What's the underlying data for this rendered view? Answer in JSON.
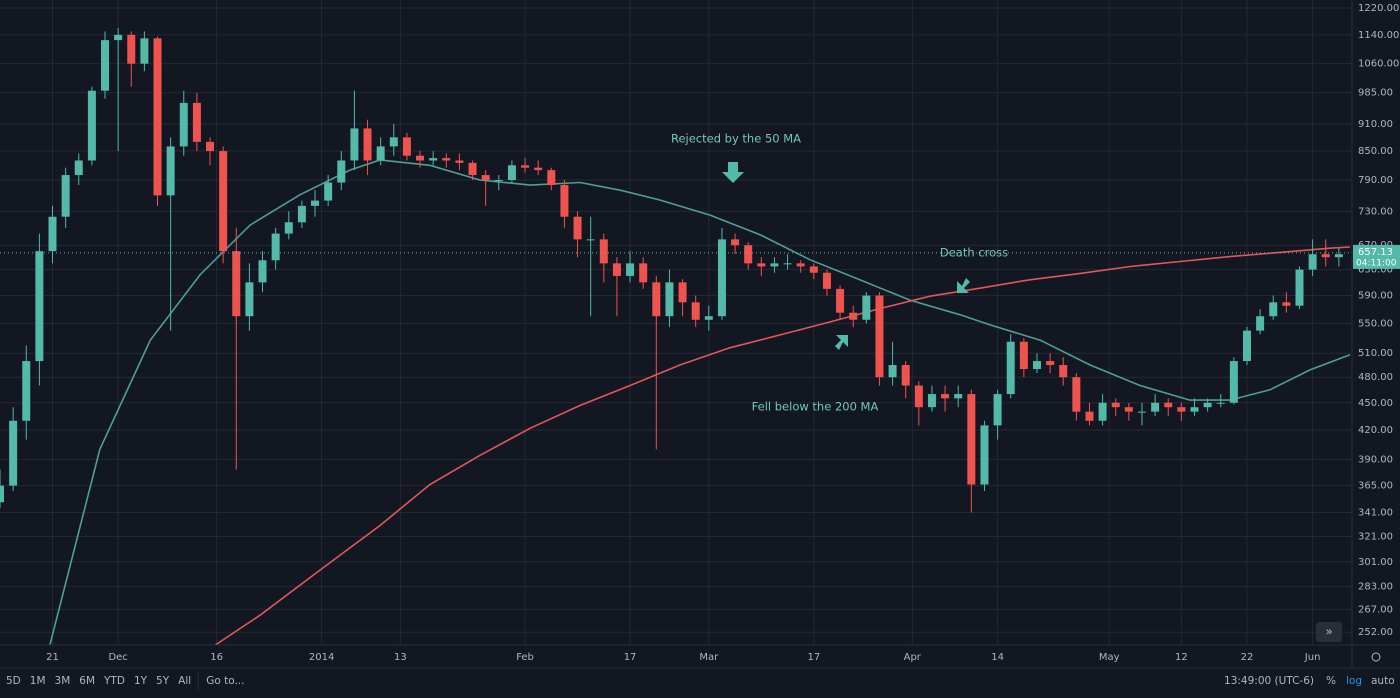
{
  "chart_data": {
    "type": "candlestick",
    "log_scale": true,
    "grid": true,
    "up_color": "#53b9a8",
    "down_color": "#ef5350",
    "xlim": [
      0,
      206
    ],
    "ylim": [
      244,
      1245
    ],
    "xticks": [
      {
        "value": 8,
        "label": "21"
      },
      {
        "value": 18,
        "label": "Dec"
      },
      {
        "value": 33,
        "label": "16"
      },
      {
        "value": 49,
        "label": "2014"
      },
      {
        "value": 61,
        "label": "13"
      },
      {
        "value": 80,
        "label": "Feb"
      },
      {
        "value": 96,
        "label": "17"
      },
      {
        "value": 108,
        "label": "Mar"
      },
      {
        "value": 124,
        "label": "17"
      },
      {
        "value": 139,
        "label": "Apr"
      },
      {
        "value": 152,
        "label": "14"
      },
      {
        "value": 169,
        "label": "May"
      },
      {
        "value": 180,
        "label": "12"
      },
      {
        "value": 190,
        "label": "22"
      },
      {
        "value": 200,
        "label": "Jun"
      }
    ],
    "yticks": [
      {
        "value": 1220,
        "label": "1220.00"
      },
      {
        "value": 1140,
        "label": "1140.00"
      },
      {
        "value": 1060,
        "label": "1060.00"
      },
      {
        "value": 985,
        "label": "985.00"
      },
      {
        "value": 910,
        "label": "910.00"
      },
      {
        "value": 850,
        "label": "850.00"
      },
      {
        "value": 790,
        "label": "790.00"
      },
      {
        "value": 730,
        "label": "730.00"
      },
      {
        "value": 670,
        "label": "670.00"
      },
      {
        "value": 630,
        "label": "630.00"
      },
      {
        "value": 590,
        "label": "590.00"
      },
      {
        "value": 550,
        "label": "550.00"
      },
      {
        "value": 510,
        "label": "510.00"
      },
      {
        "value": 480,
        "label": "480.00"
      },
      {
        "value": 450,
        "label": "450.00"
      },
      {
        "value": 420,
        "label": "420.00"
      },
      {
        "value": 390,
        "label": "390.00"
      },
      {
        "value": 365,
        "label": "365.00"
      },
      {
        "value": 341,
        "label": "341.00"
      },
      {
        "value": 321,
        "label": "321.00"
      },
      {
        "value": 301,
        "label": "301.00"
      },
      {
        "value": 283,
        "label": "283.00"
      },
      {
        "value": 267,
        "label": "267.00"
      },
      {
        "value": 252,
        "label": "252.00"
      }
    ],
    "x": [
      0,
      2,
      4,
      6,
      8,
      10,
      12,
      14,
      16,
      18,
      20,
      22,
      24,
      26,
      28,
      30,
      32,
      34,
      36,
      38,
      40,
      42,
      44,
      46,
      48,
      50,
      52,
      54,
      56,
      58,
      60,
      62,
      64,
      66,
      68,
      70,
      72,
      74,
      76,
      78,
      80,
      82,
      84,
      86,
      88,
      90,
      92,
      94,
      96,
      98,
      100,
      102,
      104,
      106,
      108,
      110,
      112,
      114,
      116,
      118,
      120,
      122,
      124,
      126,
      128,
      130,
      132,
      134,
      136,
      138,
      140,
      142,
      144,
      146,
      148,
      150,
      152,
      154,
      156,
      158,
      160,
      162,
      164,
      166,
      168,
      170,
      172,
      174,
      176,
      178,
      180,
      182,
      184,
      186,
      188,
      190,
      192,
      194,
      196,
      198,
      200,
      202,
      204
    ],
    "ohlc": [
      [
        350,
        380,
        345,
        365
      ],
      [
        365,
        445,
        360,
        430
      ],
      [
        430,
        520,
        410,
        500
      ],
      [
        500,
        690,
        470,
        660
      ],
      [
        660,
        740,
        640,
        720
      ],
      [
        720,
        815,
        700,
        800
      ],
      [
        800,
        845,
        780,
        830
      ],
      [
        830,
        1000,
        820,
        990
      ],
      [
        990,
        1150,
        970,
        1125
      ],
      [
        1125,
        1160,
        850,
        1140
      ],
      [
        1140,
        1150,
        1000,
        1060
      ],
      [
        1060,
        1150,
        1040,
        1130
      ],
      [
        1130,
        1135,
        740,
        760
      ],
      [
        760,
        880,
        540,
        860
      ],
      [
        860,
        990,
        840,
        960
      ],
      [
        960,
        985,
        850,
        870
      ],
      [
        870,
        880,
        820,
        850
      ],
      [
        850,
        860,
        640,
        660
      ],
      [
        660,
        700,
        380,
        560
      ],
      [
        560,
        640,
        540,
        610
      ],
      [
        610,
        660,
        595,
        645
      ],
      [
        645,
        700,
        630,
        690
      ],
      [
        690,
        730,
        680,
        710
      ],
      [
        710,
        750,
        700,
        740
      ],
      [
        740,
        770,
        720,
        750
      ],
      [
        750,
        800,
        740,
        785
      ],
      [
        785,
        850,
        770,
        830
      ],
      [
        830,
        990,
        810,
        900
      ],
      [
        900,
        920,
        800,
        830
      ],
      [
        830,
        880,
        820,
        860
      ],
      [
        860,
        910,
        840,
        880
      ],
      [
        880,
        890,
        830,
        840
      ],
      [
        840,
        850,
        815,
        830
      ],
      [
        830,
        850,
        820,
        835
      ],
      [
        835,
        845,
        815,
        830
      ],
      [
        830,
        845,
        810,
        825
      ],
      [
        825,
        830,
        790,
        800
      ],
      [
        800,
        810,
        740,
        790
      ],
      [
        790,
        800,
        770,
        790
      ],
      [
        790,
        830,
        785,
        820
      ],
      [
        820,
        835,
        805,
        815
      ],
      [
        815,
        830,
        800,
        810
      ],
      [
        810,
        815,
        770,
        780
      ],
      [
        780,
        790,
        700,
        720
      ],
      [
        720,
        730,
        650,
        680
      ],
      [
        680,
        720,
        560,
        680
      ],
      [
        680,
        690,
        610,
        640
      ],
      [
        640,
        650,
        560,
        620
      ],
      [
        620,
        660,
        610,
        640
      ],
      [
        640,
        650,
        600,
        610
      ],
      [
        610,
        620,
        400,
        560
      ],
      [
        560,
        630,
        545,
        610
      ],
      [
        610,
        615,
        560,
        580
      ],
      [
        580,
        590,
        545,
        555
      ],
      [
        555,
        575,
        540,
        560
      ],
      [
        560,
        700,
        555,
        680
      ],
      [
        680,
        690,
        655,
        670
      ],
      [
        670,
        675,
        630,
        640
      ],
      [
        640,
        650,
        620,
        635
      ],
      [
        635,
        650,
        625,
        640
      ],
      [
        640,
        655,
        630,
        640
      ],
      [
        640,
        645,
        625,
        635
      ],
      [
        635,
        640,
        615,
        625
      ],
      [
        625,
        630,
        590,
        600
      ],
      [
        600,
        605,
        555,
        565
      ],
      [
        565,
        575,
        545,
        555
      ],
      [
        555,
        595,
        550,
        590
      ],
      [
        590,
        595,
        470,
        480
      ],
      [
        480,
        525,
        470,
        495
      ],
      [
        495,
        500,
        455,
        470
      ],
      [
        470,
        475,
        425,
        445
      ],
      [
        445,
        470,
        440,
        460
      ],
      [
        460,
        470,
        440,
        455
      ],
      [
        455,
        470,
        445,
        460
      ],
      [
        460,
        465,
        341,
        366
      ],
      [
        366,
        430,
        360,
        425
      ],
      [
        425,
        465,
        410,
        460
      ],
      [
        460,
        535,
        455,
        525
      ],
      [
        525,
        530,
        480,
        490
      ],
      [
        490,
        510,
        485,
        500
      ],
      [
        500,
        510,
        485,
        495
      ],
      [
        495,
        505,
        470,
        480
      ],
      [
        480,
        485,
        430,
        440
      ],
      [
        440,
        450,
        425,
        430
      ],
      [
        430,
        460,
        425,
        450
      ],
      [
        450,
        455,
        435,
        445
      ],
      [
        445,
        450,
        430,
        440
      ],
      [
        440,
        450,
        425,
        440
      ],
      [
        440,
        460,
        435,
        450
      ],
      [
        450,
        455,
        435,
        445
      ],
      [
        445,
        450,
        430,
        440
      ],
      [
        440,
        455,
        435,
        445
      ],
      [
        445,
        455,
        440,
        450
      ],
      [
        450,
        460,
        445,
        450
      ],
      [
        450,
        505,
        448,
        500
      ],
      [
        500,
        545,
        495,
        540
      ],
      [
        540,
        570,
        535,
        560
      ],
      [
        560,
        590,
        555,
        580
      ],
      [
        580,
        595,
        565,
        575
      ],
      [
        575,
        635,
        570,
        630
      ],
      [
        630,
        680,
        620,
        655
      ],
      [
        655,
        680,
        635,
        650
      ],
      [
        650,
        665,
        635,
        655
      ]
    ],
    "moving_averages": [
      {
        "color": "#4e9f96",
        "x": [
          7.6,
          15.2,
          22.9,
          30.5,
          38.1,
          45.7,
          53.3,
          57.9,
          65.5,
          73.1,
          80.8,
          88.4,
          94.5,
          100.6,
          108.2,
          115.8,
          123.4,
          131,
          138.7,
          146.3,
          150.8,
          158.5,
          166.1,
          173.7,
          181.3,
          187.4,
          193.5,
          199.6,
          205.7
        ],
        "values": [
          244,
          400,
          527,
          622,
          705,
          761,
          810,
          831,
          820,
          790,
          780,
          785,
          770,
          751,
          723,
          688,
          646,
          614,
          583,
          562,
          548,
          527,
          495,
          470,
          453,
          453,
          465,
          489,
          508
        ]
      },
      {
        "color": "#e0575c",
        "x": [
          32.8,
          39.6,
          48.8,
          57.9,
          65.5,
          73.1,
          80.8,
          88.4,
          96,
          103.6,
          111.2,
          118.8,
          126.5,
          134.1,
          141.7,
          149.3,
          156.9,
          164.6,
          172.2,
          179.8,
          187.4,
          195,
          202.6,
          205.7
        ],
        "values": [
          244,
          263,
          295,
          330,
          366,
          394,
          422,
          447,
          470,
          495,
          517,
          534,
          552,
          571,
          589,
          601,
          614,
          624,
          635,
          643,
          651,
          658,
          665,
          667
        ]
      }
    ],
    "last_price": 657.13,
    "countdown": "04:11:00",
    "annotations": [
      "Rejected by the 50 MA",
      "Death cross",
      "Fell below the 200 MA"
    ]
  },
  "toolbar": {
    "ranges": [
      "5D",
      "1M",
      "3M",
      "6M",
      "YTD",
      "1Y",
      "5Y",
      "All"
    ],
    "goto": "Go to...",
    "time": "13:49:00 (UTC-6)",
    "percent": "%",
    "log": "log",
    "auto": "auto"
  }
}
